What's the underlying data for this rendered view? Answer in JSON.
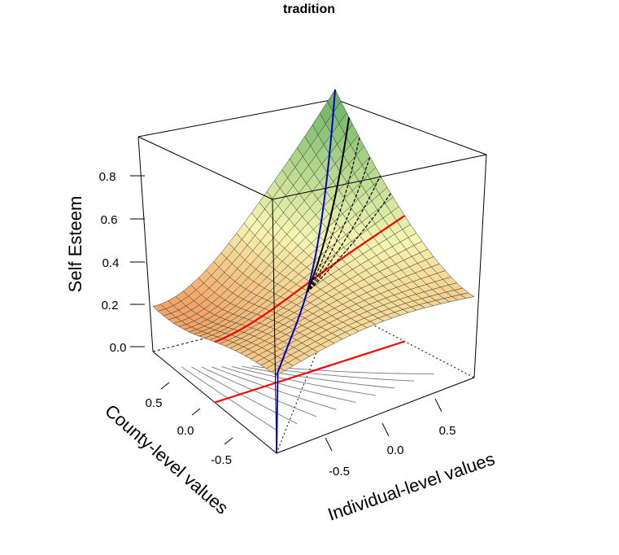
{
  "chart_data": {
    "type": "surface",
    "title": "tradition",
    "zlabel": "Self Esteem",
    "xlabel": "Individual-level values",
    "ylabel": "County-level values",
    "z_ticks": [
      "0.0",
      "0.2",
      "0.4",
      "0.6",
      "0.8"
    ],
    "x_ticks": [
      "-0.5",
      "0.0",
      "0.5"
    ],
    "y_ticks": [
      "-0.5",
      "0.0",
      "0.5"
    ],
    "zlim": [
      0,
      0.95
    ],
    "xlim": [
      -1,
      1
    ],
    "ylim": [
      -1,
      1
    ],
    "surface_corners_z": {
      "x_min_y_min": 0.95,
      "x_max_y_min": 0.3,
      "x_min_y_max": 0.3,
      "x_max_y_max": 0.3,
      "center": 0.36
    },
    "lines": [
      {
        "name": "",
        "color": "#ff0000",
        "description_values": [
          0.3,
          0.4,
          0.3
        ]
      },
      {
        "name": "",
        "color": "#0000cc",
        "description_values": [
          0.95,
          0.33,
          0.95
        ]
      }
    ],
    "colors": {
      "surface_high": "#5cae5c",
      "surface_mid": "#f6f6b2",
      "surface_low": "#f2a567",
      "red_line": "#ff0000",
      "blue_line": "#0000cc",
      "contours": "#777777"
    }
  }
}
